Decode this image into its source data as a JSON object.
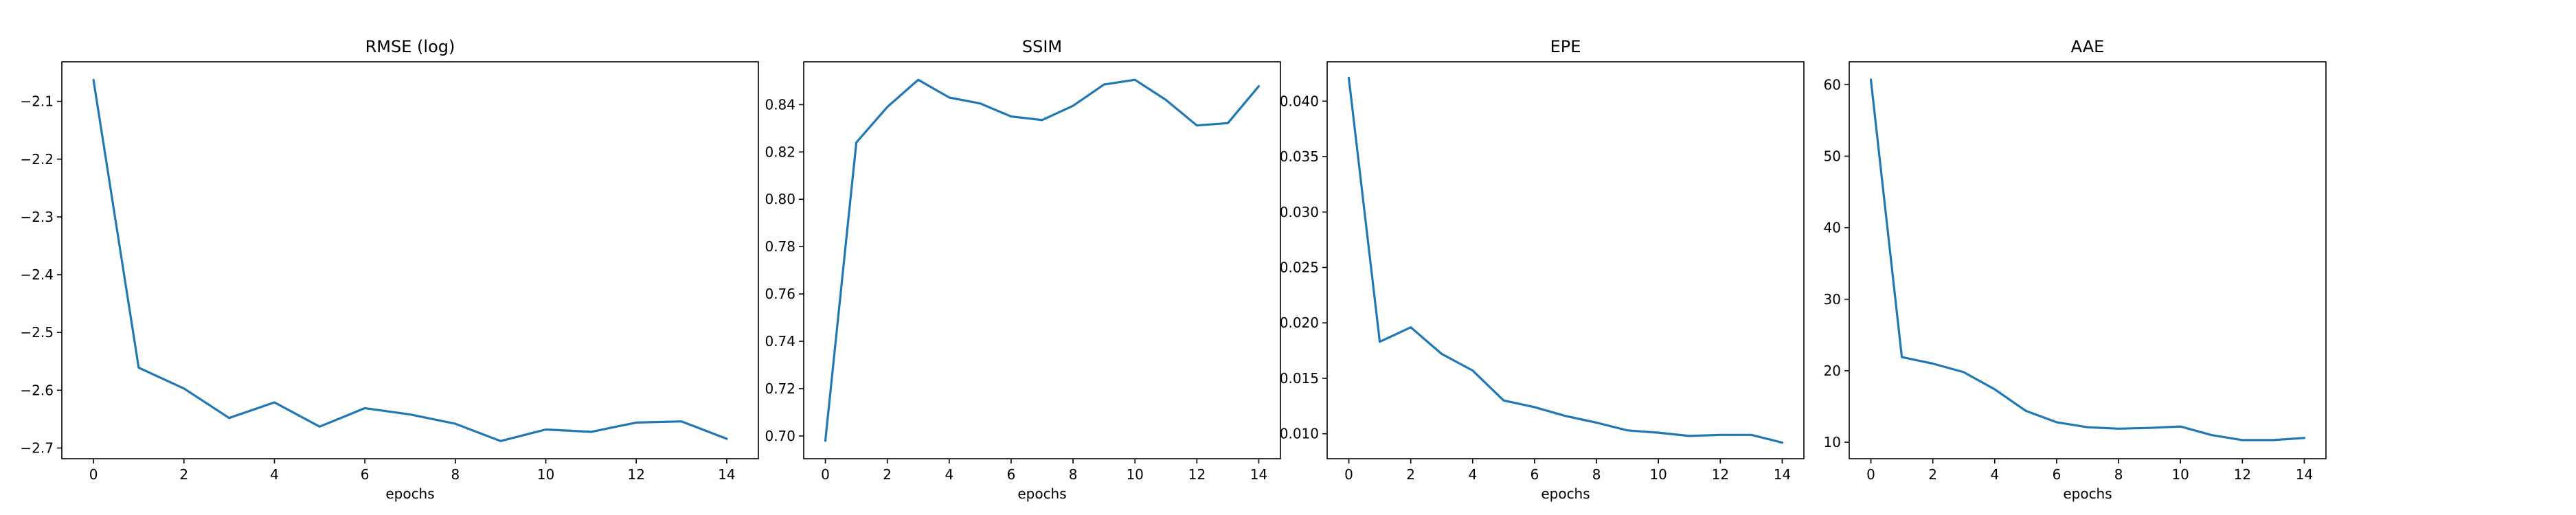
{
  "chart_data": [
    {
      "type": "line",
      "title": "RMSE (log)",
      "xlabel": "epochs",
      "ylabel": "",
      "x": [
        0,
        1,
        2,
        3,
        4,
        5,
        6,
        7,
        8,
        9,
        10,
        11,
        12,
        13,
        14
      ],
      "series": [
        {
          "values": [
            -2.063,
            -2.561,
            -2.597,
            -2.648,
            -2.621,
            -2.663,
            -2.631,
            -2.642,
            -2.658,
            -2.688,
            -2.668,
            -2.672,
            -2.656,
            -2.654,
            -2.684
          ],
          "color": "#1f77b4"
        }
      ],
      "xlim": [
        -0.7,
        14.7
      ],
      "ylim": [
        -2.7185,
        -2.0315
      ],
      "xticks": [
        0,
        2,
        4,
        6,
        8,
        10,
        12,
        14
      ],
      "yticks": [
        -2.7,
        -2.6,
        -2.5,
        -2.4,
        -2.3,
        -2.2,
        -2.1
      ],
      "ytick_labels": [
        "−2.7",
        "−2.6",
        "−2.5",
        "−2.4",
        "−2.3",
        "−2.2",
        "−2.1"
      ],
      "grid": false
    },
    {
      "type": "line",
      "title": "SSIM",
      "xlabel": "epochs",
      "ylabel": "",
      "x": [
        0,
        1,
        2,
        3,
        4,
        5,
        6,
        7,
        8,
        9,
        10,
        11,
        12,
        13,
        14
      ],
      "series": [
        {
          "values": [
            0.698,
            0.824,
            0.839,
            0.8505,
            0.843,
            0.8405,
            0.835,
            0.8335,
            0.8395,
            0.8485,
            0.8505,
            0.842,
            0.8312,
            0.8322,
            0.8478
          ],
          "color": "#1f77b4"
        }
      ],
      "xlim": [
        -0.7,
        14.7
      ],
      "ylim": [
        0.6904,
        0.8581
      ],
      "xticks": [
        0,
        2,
        4,
        6,
        8,
        10,
        12,
        14
      ],
      "yticks": [
        0.7,
        0.72,
        0.74,
        0.76,
        0.78,
        0.8,
        0.82,
        0.84
      ],
      "ytick_labels": [
        "0.70",
        "0.72",
        "0.74",
        "0.76",
        "0.78",
        "0.80",
        "0.82",
        "0.84"
      ],
      "grid": false
    },
    {
      "type": "line",
      "title": "EPE",
      "xlabel": "epochs",
      "ylabel": "",
      "x": [
        0,
        1,
        2,
        3,
        4,
        5,
        6,
        7,
        8,
        9,
        10,
        11,
        12,
        13,
        14
      ],
      "series": [
        {
          "values": [
            0.0421,
            0.0183,
            0.0196,
            0.0172,
            0.0157,
            0.013,
            0.0124,
            0.0116,
            0.011,
            0.0103,
            0.0101,
            0.0098,
            0.0099,
            0.0099,
            0.0092
          ],
          "color": "#1f77b4"
        }
      ],
      "xlim": [
        -0.7,
        14.7
      ],
      "ylim": [
        0.00775,
        0.04355
      ],
      "xticks": [
        0,
        2,
        4,
        6,
        8,
        10,
        12,
        14
      ],
      "yticks": [
        0.01,
        0.015,
        0.02,
        0.025,
        0.03,
        0.035,
        0.04
      ],
      "ytick_labels": [
        "0.010",
        "0.015",
        "0.020",
        "0.025",
        "0.030",
        "0.035",
        "0.040"
      ],
      "grid": false
    },
    {
      "type": "line",
      "title": "AAE",
      "xlabel": "epochs",
      "ylabel": "",
      "x": [
        0,
        1,
        2,
        3,
        4,
        5,
        6,
        7,
        8,
        9,
        10,
        11,
        12,
        13,
        14
      ],
      "series": [
        {
          "values": [
            60.7,
            21.9,
            21.0,
            19.8,
            17.4,
            14.4,
            12.8,
            12.1,
            11.9,
            12.0,
            12.2,
            11.0,
            10.3,
            10.3,
            10.6
          ],
          "color": "#1f77b4"
        }
      ],
      "xlim": [
        -0.7,
        14.7
      ],
      "ylim": [
        7.7,
        63.2
      ],
      "xticks": [
        0,
        2,
        4,
        6,
        8,
        10,
        12,
        14
      ],
      "yticks": [
        10,
        20,
        30,
        40,
        50,
        60
      ],
      "ytick_labels": [
        "10",
        "20",
        "30",
        "40",
        "50",
        "60"
      ],
      "grid": false
    }
  ]
}
